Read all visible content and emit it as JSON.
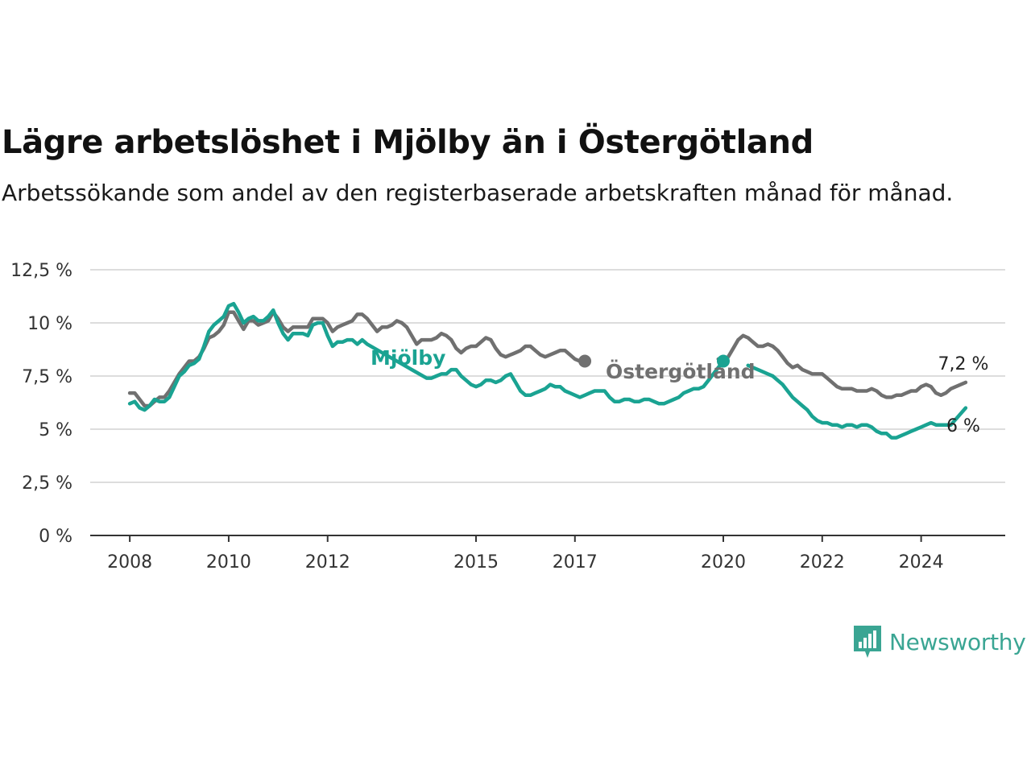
{
  "title": "Lägre arbetslöshet i Mjölby än i Östergötland",
  "subtitle": "Arbetssökande som andel av den registerbaserade arbetskraften månad för månad.",
  "brand": {
    "name": "Newsworthy",
    "color": "#3aa593"
  },
  "colors": {
    "mjolby": "#1aa392",
    "ostergotland": "#707070",
    "grid": "#dddddd",
    "axis": "#333333"
  },
  "chart_data": {
    "type": "line",
    "x_tick_labels": [
      "2008",
      "2010",
      "2012",
      "2015",
      "2017",
      "2020",
      "2022",
      "2024"
    ],
    "x_tick_values": [
      2008,
      2010,
      2012,
      2015,
      2017,
      2020,
      2022,
      2024
    ],
    "y_tick_labels": [
      "0 %",
      "2,5 %",
      "5 %",
      "7,5 %",
      "10 %",
      "12,5 %"
    ],
    "y_tick_values": [
      0,
      2.5,
      5,
      7.5,
      10,
      12.5
    ],
    "xlim": [
      2007.2,
      2025.7
    ],
    "ylim": [
      0,
      12.5
    ],
    "grid": true,
    "series": [
      {
        "key": "ostergotland",
        "name": "Östergötland",
        "color": "#707070",
        "end_label": "7,2 %",
        "points": [
          [
            2008.0,
            6.7
          ],
          [
            2008.1,
            6.7
          ],
          [
            2008.2,
            6.4
          ],
          [
            2008.3,
            6.1
          ],
          [
            2008.4,
            6.1
          ],
          [
            2008.5,
            6.3
          ],
          [
            2008.6,
            6.5
          ],
          [
            2008.7,
            6.5
          ],
          [
            2008.8,
            6.8
          ],
          [
            2008.9,
            7.2
          ],
          [
            2009.0,
            7.6
          ],
          [
            2009.1,
            7.9
          ],
          [
            2009.2,
            8.2
          ],
          [
            2009.3,
            8.2
          ],
          [
            2009.4,
            8.4
          ],
          [
            2009.5,
            8.8
          ],
          [
            2009.6,
            9.3
          ],
          [
            2009.7,
            9.4
          ],
          [
            2009.8,
            9.6
          ],
          [
            2009.9,
            9.9
          ],
          [
            2010.0,
            10.5
          ],
          [
            2010.1,
            10.5
          ],
          [
            2010.2,
            10.1
          ],
          [
            2010.3,
            9.7
          ],
          [
            2010.4,
            10.1
          ],
          [
            2010.5,
            10.1
          ],
          [
            2010.6,
            9.9
          ],
          [
            2010.7,
            10.0
          ],
          [
            2010.8,
            10.1
          ],
          [
            2010.9,
            10.5
          ],
          [
            2011.0,
            10.2
          ],
          [
            2011.1,
            9.8
          ],
          [
            2011.2,
            9.6
          ],
          [
            2011.3,
            9.8
          ],
          [
            2011.4,
            9.8
          ],
          [
            2011.5,
            9.8
          ],
          [
            2011.6,
            9.8
          ],
          [
            2011.7,
            10.2
          ],
          [
            2011.8,
            10.2
          ],
          [
            2011.9,
            10.2
          ],
          [
            2012.0,
            10.0
          ],
          [
            2012.1,
            9.6
          ],
          [
            2012.2,
            9.8
          ],
          [
            2012.3,
            9.9
          ],
          [
            2012.4,
            10.0
          ],
          [
            2012.5,
            10.1
          ],
          [
            2012.6,
            10.4
          ],
          [
            2012.7,
            10.4
          ],
          [
            2012.8,
            10.2
          ],
          [
            2012.9,
            9.9
          ],
          [
            2013.0,
            9.6
          ],
          [
            2013.1,
            9.8
          ],
          [
            2013.2,
            9.8
          ],
          [
            2013.3,
            9.9
          ],
          [
            2013.4,
            10.1
          ],
          [
            2013.5,
            10.0
          ],
          [
            2013.6,
            9.8
          ],
          [
            2013.7,
            9.4
          ],
          [
            2013.8,
            9.0
          ],
          [
            2013.9,
            9.2
          ],
          [
            2014.0,
            9.2
          ],
          [
            2014.1,
            9.2
          ],
          [
            2014.2,
            9.3
          ],
          [
            2014.3,
            9.5
          ],
          [
            2014.4,
            9.4
          ],
          [
            2014.5,
            9.2
          ],
          [
            2014.6,
            8.8
          ],
          [
            2014.7,
            8.6
          ],
          [
            2014.8,
            8.8
          ],
          [
            2014.9,
            8.9
          ],
          [
            2015.0,
            8.9
          ],
          [
            2015.1,
            9.1
          ],
          [
            2015.2,
            9.3
          ],
          [
            2015.3,
            9.2
          ],
          [
            2015.4,
            8.8
          ],
          [
            2015.5,
            8.5
          ],
          [
            2015.6,
            8.4
          ],
          [
            2015.7,
            8.5
          ],
          [
            2015.8,
            8.6
          ],
          [
            2015.9,
            8.7
          ],
          [
            2016.0,
            8.9
          ],
          [
            2016.1,
            8.9
          ],
          [
            2016.2,
            8.7
          ],
          [
            2016.3,
            8.5
          ],
          [
            2016.4,
            8.4
          ],
          [
            2016.5,
            8.5
          ],
          [
            2016.6,
            8.6
          ],
          [
            2016.7,
            8.7
          ],
          [
            2016.8,
            8.7
          ],
          [
            2016.9,
            8.5
          ],
          [
            2017.0,
            8.3
          ],
          [
            2017.1,
            8.2
          ],
          [
            2017.2,
            8.2
          ]
        ]
      },
      {
        "key": "mjolby",
        "name": "Mjölby",
        "color": "#1aa392",
        "end_label": "6 %",
        "points": [
          [
            2008.0,
            6.2
          ],
          [
            2008.1,
            6.3
          ],
          [
            2008.2,
            6.0
          ],
          [
            2008.3,
            5.9
          ],
          [
            2008.4,
            6.1
          ],
          [
            2008.5,
            6.4
          ],
          [
            2008.6,
            6.3
          ],
          [
            2008.7,
            6.3
          ],
          [
            2008.8,
            6.5
          ],
          [
            2008.9,
            7.0
          ],
          [
            2009.0,
            7.5
          ],
          [
            2009.1,
            7.7
          ],
          [
            2009.2,
            8.0
          ],
          [
            2009.3,
            8.1
          ],
          [
            2009.4,
            8.3
          ],
          [
            2009.5,
            8.9
          ],
          [
            2009.6,
            9.6
          ],
          [
            2009.7,
            9.9
          ],
          [
            2009.8,
            10.1
          ],
          [
            2009.9,
            10.3
          ],
          [
            2010.0,
            10.8
          ],
          [
            2010.1,
            10.9
          ],
          [
            2010.2,
            10.5
          ],
          [
            2010.3,
            10.0
          ],
          [
            2010.4,
            10.2
          ],
          [
            2010.5,
            10.3
          ],
          [
            2010.6,
            10.1
          ],
          [
            2010.7,
            10.1
          ],
          [
            2010.8,
            10.3
          ],
          [
            2010.9,
            10.6
          ],
          [
            2011.0,
            10.0
          ],
          [
            2011.1,
            9.5
          ],
          [
            2011.2,
            9.2
          ],
          [
            2011.3,
            9.5
          ],
          [
            2011.4,
            9.5
          ],
          [
            2011.5,
            9.5
          ],
          [
            2011.6,
            9.4
          ],
          [
            2011.7,
            9.9
          ],
          [
            2011.8,
            10.0
          ],
          [
            2011.9,
            10.0
          ],
          [
            2012.0,
            9.4
          ],
          [
            2012.1,
            8.9
          ],
          [
            2012.2,
            9.1
          ],
          [
            2012.3,
            9.1
          ],
          [
            2012.4,
            9.2
          ],
          [
            2012.5,
            9.2
          ],
          [
            2012.6,
            9.0
          ],
          [
            2012.7,
            9.2
          ],
          [
            2012.8,
            9.0
          ],
          [
            2014.0,
            7.4
          ],
          [
            2014.1,
            7.4
          ],
          [
            2014.2,
            7.5
          ],
          [
            2014.3,
            7.6
          ],
          [
            2014.4,
            7.6
          ],
          [
            2014.5,
            7.8
          ],
          [
            2014.6,
            7.8
          ],
          [
            2014.7,
            7.5
          ],
          [
            2014.8,
            7.3
          ],
          [
            2014.9,
            7.1
          ],
          [
            2015.0,
            7.0
          ],
          [
            2015.1,
            7.1
          ],
          [
            2015.2,
            7.3
          ],
          [
            2015.3,
            7.3
          ],
          [
            2015.4,
            7.2
          ],
          [
            2015.5,
            7.3
          ],
          [
            2015.6,
            7.5
          ],
          [
            2015.7,
            7.6
          ],
          [
            2015.8,
            7.2
          ],
          [
            2015.9,
            6.8
          ],
          [
            2016.0,
            6.6
          ],
          [
            2016.1,
            6.6
          ],
          [
            2016.2,
            6.7
          ],
          [
            2016.3,
            6.8
          ],
          [
            2016.4,
            6.9
          ],
          [
            2016.5,
            7.1
          ],
          [
            2016.6,
            7.0
          ],
          [
            2016.7,
            7.0
          ],
          [
            2016.8,
            6.8
          ],
          [
            2016.9,
            6.7
          ],
          [
            2017.0,
            6.6
          ],
          [
            2017.1,
            6.5
          ],
          [
            2017.2,
            6.6
          ],
          [
            2017.3,
            6.7
          ],
          [
            2017.4,
            6.8
          ],
          [
            2017.5,
            6.8
          ],
          [
            2017.6,
            6.8
          ],
          [
            2017.7,
            6.5
          ],
          [
            2017.8,
            6.3
          ],
          [
            2017.9,
            6.3
          ],
          [
            2018.0,
            6.4
          ],
          [
            2018.1,
            6.4
          ],
          [
            2018.2,
            6.3
          ],
          [
            2018.3,
            6.3
          ],
          [
            2018.4,
            6.4
          ],
          [
            2018.5,
            6.4
          ],
          [
            2018.6,
            6.3
          ],
          [
            2018.7,
            6.2
          ],
          [
            2018.8,
            6.2
          ],
          [
            2018.9,
            6.3
          ],
          [
            2019.0,
            6.4
          ],
          [
            2019.1,
            6.5
          ],
          [
            2019.2,
            6.7
          ],
          [
            2019.3,
            6.8
          ],
          [
            2019.4,
            6.9
          ],
          [
            2019.5,
            6.9
          ],
          [
            2019.6,
            7.0
          ],
          [
            2019.7,
            7.3
          ],
          [
            2019.8,
            7.6
          ],
          [
            2019.9,
            7.9
          ],
          [
            2020.0,
            8.2
          ]
        ]
      },
      {
        "key": "ostergotland",
        "name": "Östergötland",
        "color": "#707070",
        "points": [
          [
            2019.9,
            8.3
          ],
          [
            2020.0,
            8.2
          ],
          [
            2020.1,
            8.4
          ],
          [
            2020.2,
            8.8
          ],
          [
            2020.3,
            9.2
          ],
          [
            2020.4,
            9.4
          ],
          [
            2020.5,
            9.3
          ],
          [
            2020.6,
            9.1
          ],
          [
            2020.7,
            8.9
          ],
          [
            2020.8,
            8.9
          ],
          [
            2020.9,
            9.0
          ],
          [
            2021.0,
            8.9
          ],
          [
            2021.1,
            8.7
          ],
          [
            2021.2,
            8.4
          ],
          [
            2021.3,
            8.1
          ],
          [
            2021.4,
            7.9
          ],
          [
            2021.5,
            8.0
          ],
          [
            2021.6,
            7.8
          ],
          [
            2021.7,
            7.7
          ],
          [
            2021.8,
            7.6
          ],
          [
            2021.9,
            7.6
          ],
          [
            2022.0,
            7.6
          ],
          [
            2022.1,
            7.4
          ],
          [
            2022.2,
            7.2
          ],
          [
            2022.3,
            7.0
          ],
          [
            2022.4,
            6.9
          ],
          [
            2022.5,
            6.9
          ],
          [
            2022.6,
            6.9
          ],
          [
            2022.7,
            6.8
          ],
          [
            2022.8,
            6.8
          ],
          [
            2022.9,
            6.8
          ],
          [
            2023.0,
            6.9
          ],
          [
            2023.1,
            6.8
          ],
          [
            2023.2,
            6.6
          ],
          [
            2023.3,
            6.5
          ],
          [
            2023.4,
            6.5
          ],
          [
            2023.5,
            6.6
          ],
          [
            2023.6,
            6.6
          ],
          [
            2023.7,
            6.7
          ],
          [
            2023.8,
            6.8
          ],
          [
            2023.9,
            6.8
          ],
          [
            2024.0,
            7.0
          ],
          [
            2024.1,
            7.1
          ],
          [
            2024.2,
            7.0
          ],
          [
            2024.3,
            6.7
          ],
          [
            2024.4,
            6.6
          ],
          [
            2024.5,
            6.7
          ],
          [
            2024.6,
            6.9
          ],
          [
            2024.7,
            7.0
          ],
          [
            2024.8,
            7.1
          ],
          [
            2024.9,
            7.2
          ]
        ]
      },
      {
        "key": "mjolby",
        "name": "Mjölby",
        "color": "#1aa392",
        "points": [
          [
            2020.5,
            8.0
          ],
          [
            2020.6,
            7.9
          ],
          [
            2020.7,
            7.8
          ],
          [
            2020.8,
            7.7
          ],
          [
            2020.9,
            7.6
          ],
          [
            2021.0,
            7.5
          ],
          [
            2021.1,
            7.3
          ],
          [
            2021.2,
            7.1
          ],
          [
            2021.3,
            6.8
          ],
          [
            2021.4,
            6.5
          ],
          [
            2021.5,
            6.3
          ],
          [
            2021.6,
            6.1
          ],
          [
            2021.7,
            5.9
          ],
          [
            2021.8,
            5.6
          ],
          [
            2021.9,
            5.4
          ],
          [
            2022.0,
            5.3
          ],
          [
            2022.1,
            5.3
          ],
          [
            2022.2,
            5.2
          ],
          [
            2022.3,
            5.2
          ],
          [
            2022.4,
            5.1
          ],
          [
            2022.5,
            5.2
          ],
          [
            2022.6,
            5.2
          ],
          [
            2022.7,
            5.1
          ],
          [
            2022.8,
            5.2
          ],
          [
            2022.9,
            5.2
          ],
          [
            2023.0,
            5.1
          ],
          [
            2023.1,
            4.9
          ],
          [
            2023.2,
            4.8
          ],
          [
            2023.3,
            4.8
          ],
          [
            2023.4,
            4.6
          ],
          [
            2023.5,
            4.6
          ],
          [
            2023.6,
            4.7
          ],
          [
            2023.7,
            4.8
          ],
          [
            2023.8,
            4.9
          ],
          [
            2023.9,
            5.0
          ],
          [
            2024.0,
            5.1
          ],
          [
            2024.1,
            5.2
          ],
          [
            2024.2,
            5.3
          ],
          [
            2024.3,
            5.2
          ],
          [
            2024.4,
            5.2
          ],
          [
            2024.5,
            5.2
          ],
          [
            2024.6,
            5.2
          ],
          [
            2024.9,
            6.0
          ]
        ]
      }
    ]
  }
}
